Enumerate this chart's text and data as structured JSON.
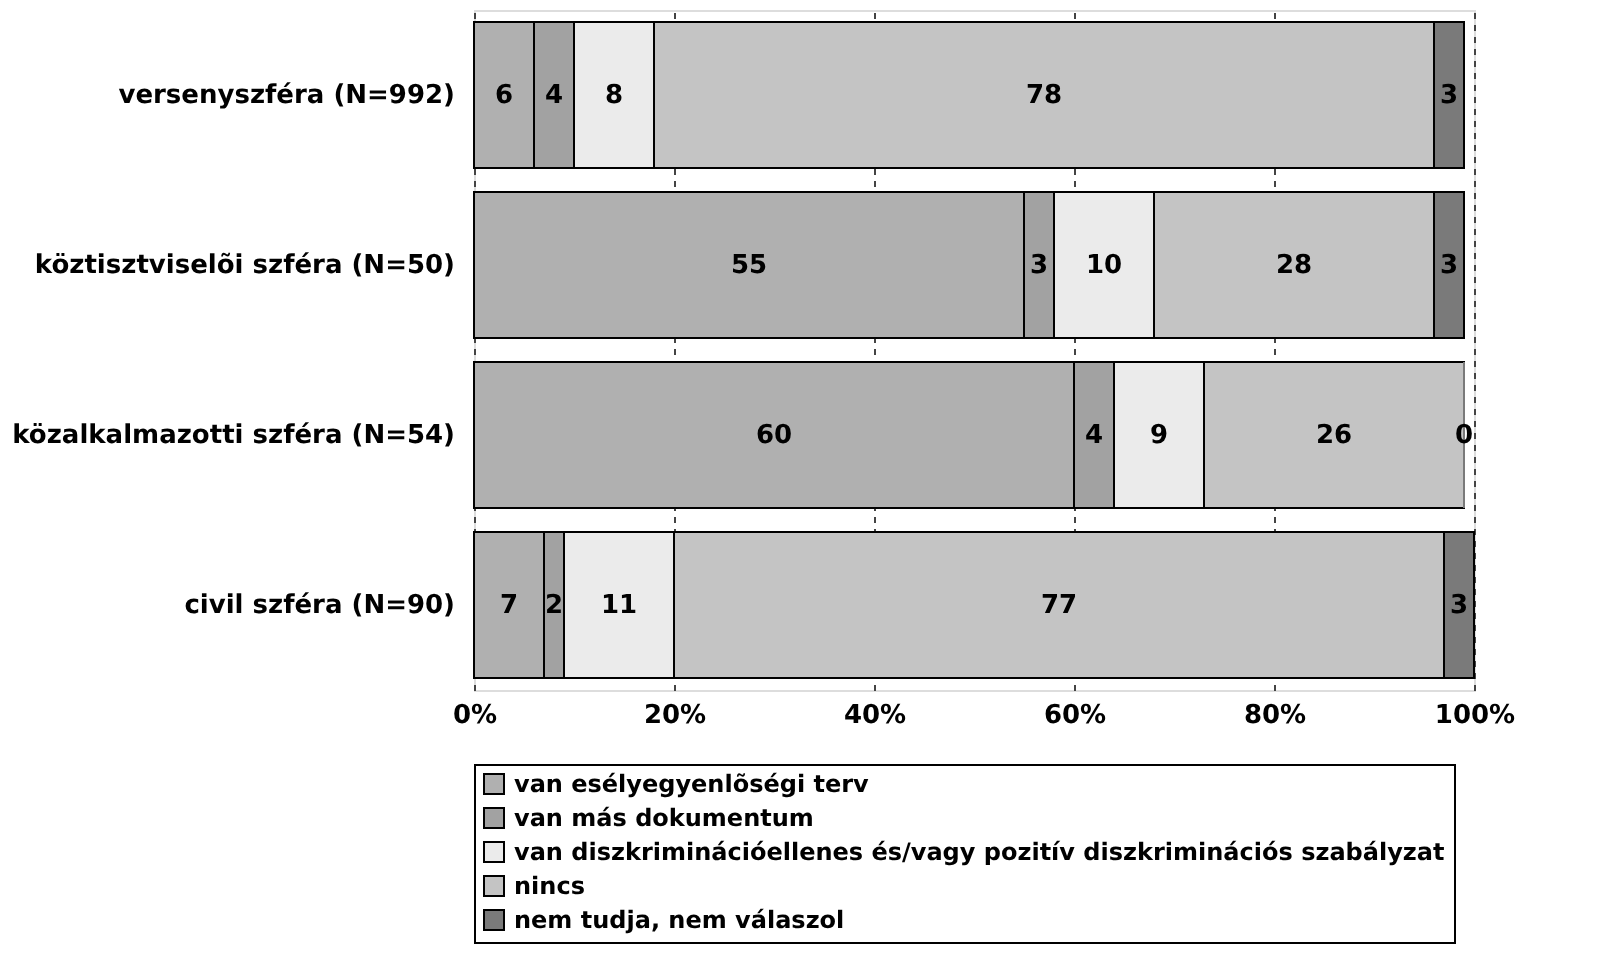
{
  "chart_data": {
    "type": "bar",
    "orientation": "horizontal",
    "stacked": true,
    "data_labels": true,
    "categories": [
      "versenyszféra (N=992)",
      "köztisztviselõi szféra (N=50)",
      "közalkalmazotti szféra (N=54)",
      "civil szféra (N=90)"
    ],
    "series": [
      {
        "name": "van esélyegyenlõségi terv",
        "color": "#b0b0b0",
        "values": [
          6,
          55,
          60,
          7
        ]
      },
      {
        "name": "van más dokumentum",
        "color": "#a2a2a2",
        "values": [
          4,
          3,
          4,
          2
        ]
      },
      {
        "name": "van diszkriminációellenes és/vagy pozitív diszkriminációs szabályzat",
        "color": "#ebebeb",
        "values": [
          8,
          10,
          9,
          11
        ]
      },
      {
        "name": "nincs",
        "color": "#c4c4c4",
        "values": [
          78,
          28,
          26,
          77
        ]
      },
      {
        "name": "nem tudja, nem válaszol",
        "color": "#7a7a7a",
        "values": [
          3,
          3,
          0,
          3
        ]
      }
    ],
    "xlim": [
      0,
      100
    ],
    "xticks": [
      {
        "value": 0,
        "label": "0%"
      },
      {
        "value": 20,
        "label": "20%"
      },
      {
        "value": 40,
        "label": "40%"
      },
      {
        "value": 60,
        "label": "60%"
      },
      {
        "value": 80,
        "label": "80%"
      },
      {
        "value": 100,
        "label": "100%"
      }
    ],
    "grid": "x",
    "legend": "bottom"
  }
}
